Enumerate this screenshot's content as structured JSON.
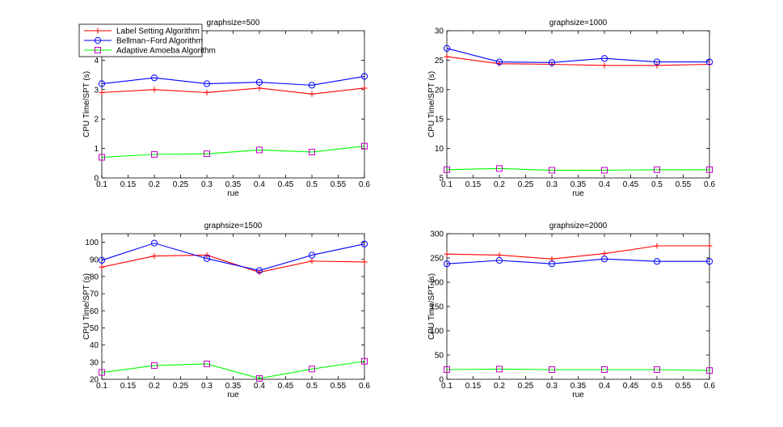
{
  "chart_data": [
    {
      "type": "line",
      "title": "graphsize=500",
      "xlabel": "rue",
      "ylabel": "CPU Time/SPT (s)",
      "xlim": [
        0.1,
        0.6
      ],
      "ylim": [
        0,
        5
      ],
      "xticks": [
        "0.1",
        "0.15",
        "0.2",
        "0.25",
        "0.3",
        "0.35",
        "0.4",
        "0.45",
        "0.5",
        "0.55",
        "0.6"
      ],
      "yticks": [
        "0",
        "1",
        "2",
        "3",
        "4"
      ],
      "x": [
        0.1,
        0.2,
        0.3,
        0.4,
        0.5,
        0.6
      ],
      "series": [
        {
          "name": "Label Setting Algorithm",
          "color": "#ff0000",
          "marker": "plus",
          "values": [
            2.9,
            3.0,
            2.9,
            3.05,
            2.85,
            3.05
          ]
        },
        {
          "name": "Bellman−Ford Algorithm",
          "color": "#0000ff",
          "marker": "circle",
          "values": [
            3.2,
            3.4,
            3.2,
            3.25,
            3.15,
            3.45
          ]
        },
        {
          "name": "Adaptive Amoeba Algorithm",
          "color": "#00ff00",
          "marker_color": "#bf00bf",
          "marker": "square",
          "values": [
            0.7,
            0.8,
            0.82,
            0.95,
            0.88,
            1.08
          ]
        }
      ],
      "legend": "top-left"
    },
    {
      "type": "line",
      "title": "graphsize=1000",
      "xlabel": "rue",
      "ylabel": "CPU Time/SPT (s)",
      "xlim": [
        0.1,
        0.6
      ],
      "ylim": [
        5,
        30
      ],
      "xticks": [
        "0.1",
        "0.15",
        "0.2",
        "0.25",
        "0.3",
        "0.35",
        "0.4",
        "0.45",
        "0.5",
        "0.55",
        "0.6"
      ],
      "yticks": [
        "5",
        "10",
        "15",
        "20",
        "25",
        "30"
      ],
      "x": [
        0.1,
        0.2,
        0.3,
        0.4,
        0.5,
        0.6
      ],
      "series": [
        {
          "name": "Label Setting Algorithm",
          "color": "#ff0000",
          "marker": "plus",
          "values": [
            25.6,
            24.4,
            24.3,
            24.1,
            24.1,
            24.3
          ]
        },
        {
          "name": "Bellman−Ford Algorithm",
          "color": "#0000ff",
          "marker": "circle",
          "values": [
            27.0,
            24.7,
            24.6,
            25.3,
            24.7,
            24.7
          ]
        },
        {
          "name": "Adaptive Amoeba Algorithm",
          "color": "#00ff00",
          "marker_color": "#bf00bf",
          "marker": "square",
          "values": [
            6.4,
            6.6,
            6.3,
            6.3,
            6.4,
            6.4
          ]
        }
      ]
    },
    {
      "type": "line",
      "title": "graphsize=1500",
      "xlabel": "rue",
      "ylabel": "CPU Time/SPT (s)",
      "xlim": [
        0.1,
        0.6
      ],
      "ylim": [
        20,
        105
      ],
      "xticks": [
        "0.1",
        "0.15",
        "0.2",
        "0.25",
        "0.3",
        "0.35",
        "0.4",
        "0.45",
        "0.5",
        "0.55",
        "0.6"
      ],
      "yticks": [
        "20",
        "30",
        "40",
        "50",
        "60",
        "70",
        "80",
        "90",
        "100"
      ],
      "x": [
        0.1,
        0.2,
        0.3,
        0.4,
        0.5,
        0.6
      ],
      "series": [
        {
          "name": "Label Setting Algorithm",
          "color": "#ff0000",
          "marker": "plus",
          "values": [
            85.5,
            92.0,
            92.5,
            82.5,
            89.0,
            88.5
          ]
        },
        {
          "name": "Bellman−Ford Algorithm",
          "color": "#0000ff",
          "marker": "circle",
          "values": [
            89.5,
            99.5,
            90.5,
            83.5,
            92.5,
            99.0
          ]
        },
        {
          "name": "Adaptive Amoeba Algorithm",
          "color": "#00ff00",
          "marker_color": "#bf00bf",
          "marker": "square",
          "values": [
            24.0,
            28.0,
            29.0,
            20.5,
            26.0,
            30.5
          ]
        }
      ]
    },
    {
      "type": "line",
      "title": "graphsize=2000",
      "xlabel": "rue",
      "ylabel": "CPU Time/SPT (s)",
      "xlim": [
        0.1,
        0.6
      ],
      "ylim": [
        0,
        300
      ],
      "xticks": [
        "0.1",
        "0.15",
        "0.2",
        "0.25",
        "0.3",
        "0.35",
        "0.4",
        "0.45",
        "0.5",
        "0.55",
        "0.6"
      ],
      "yticks": [
        "0",
        "50",
        "100",
        "150",
        "200",
        "250",
        "300"
      ],
      "x": [
        0.1,
        0.2,
        0.3,
        0.4,
        0.5,
        0.6
      ],
      "series": [
        {
          "name": "Label Setting Algorithm",
          "color": "#ff0000",
          "marker": "plus",
          "values": [
            258,
            256,
            248,
            259,
            275,
            275
          ]
        },
        {
          "name": "Bellman−Ford Algorithm",
          "color": "#0000ff",
          "marker": "circle",
          "values": [
            238,
            245,
            238,
            248,
            243,
            243
          ]
        },
        {
          "name": "Adaptive Amoeba Algorithm",
          "color": "#00ff00",
          "marker_color": "#bf00bf",
          "marker": "square",
          "values": [
            20,
            21,
            20,
            20,
            20,
            18
          ]
        }
      ]
    }
  ]
}
